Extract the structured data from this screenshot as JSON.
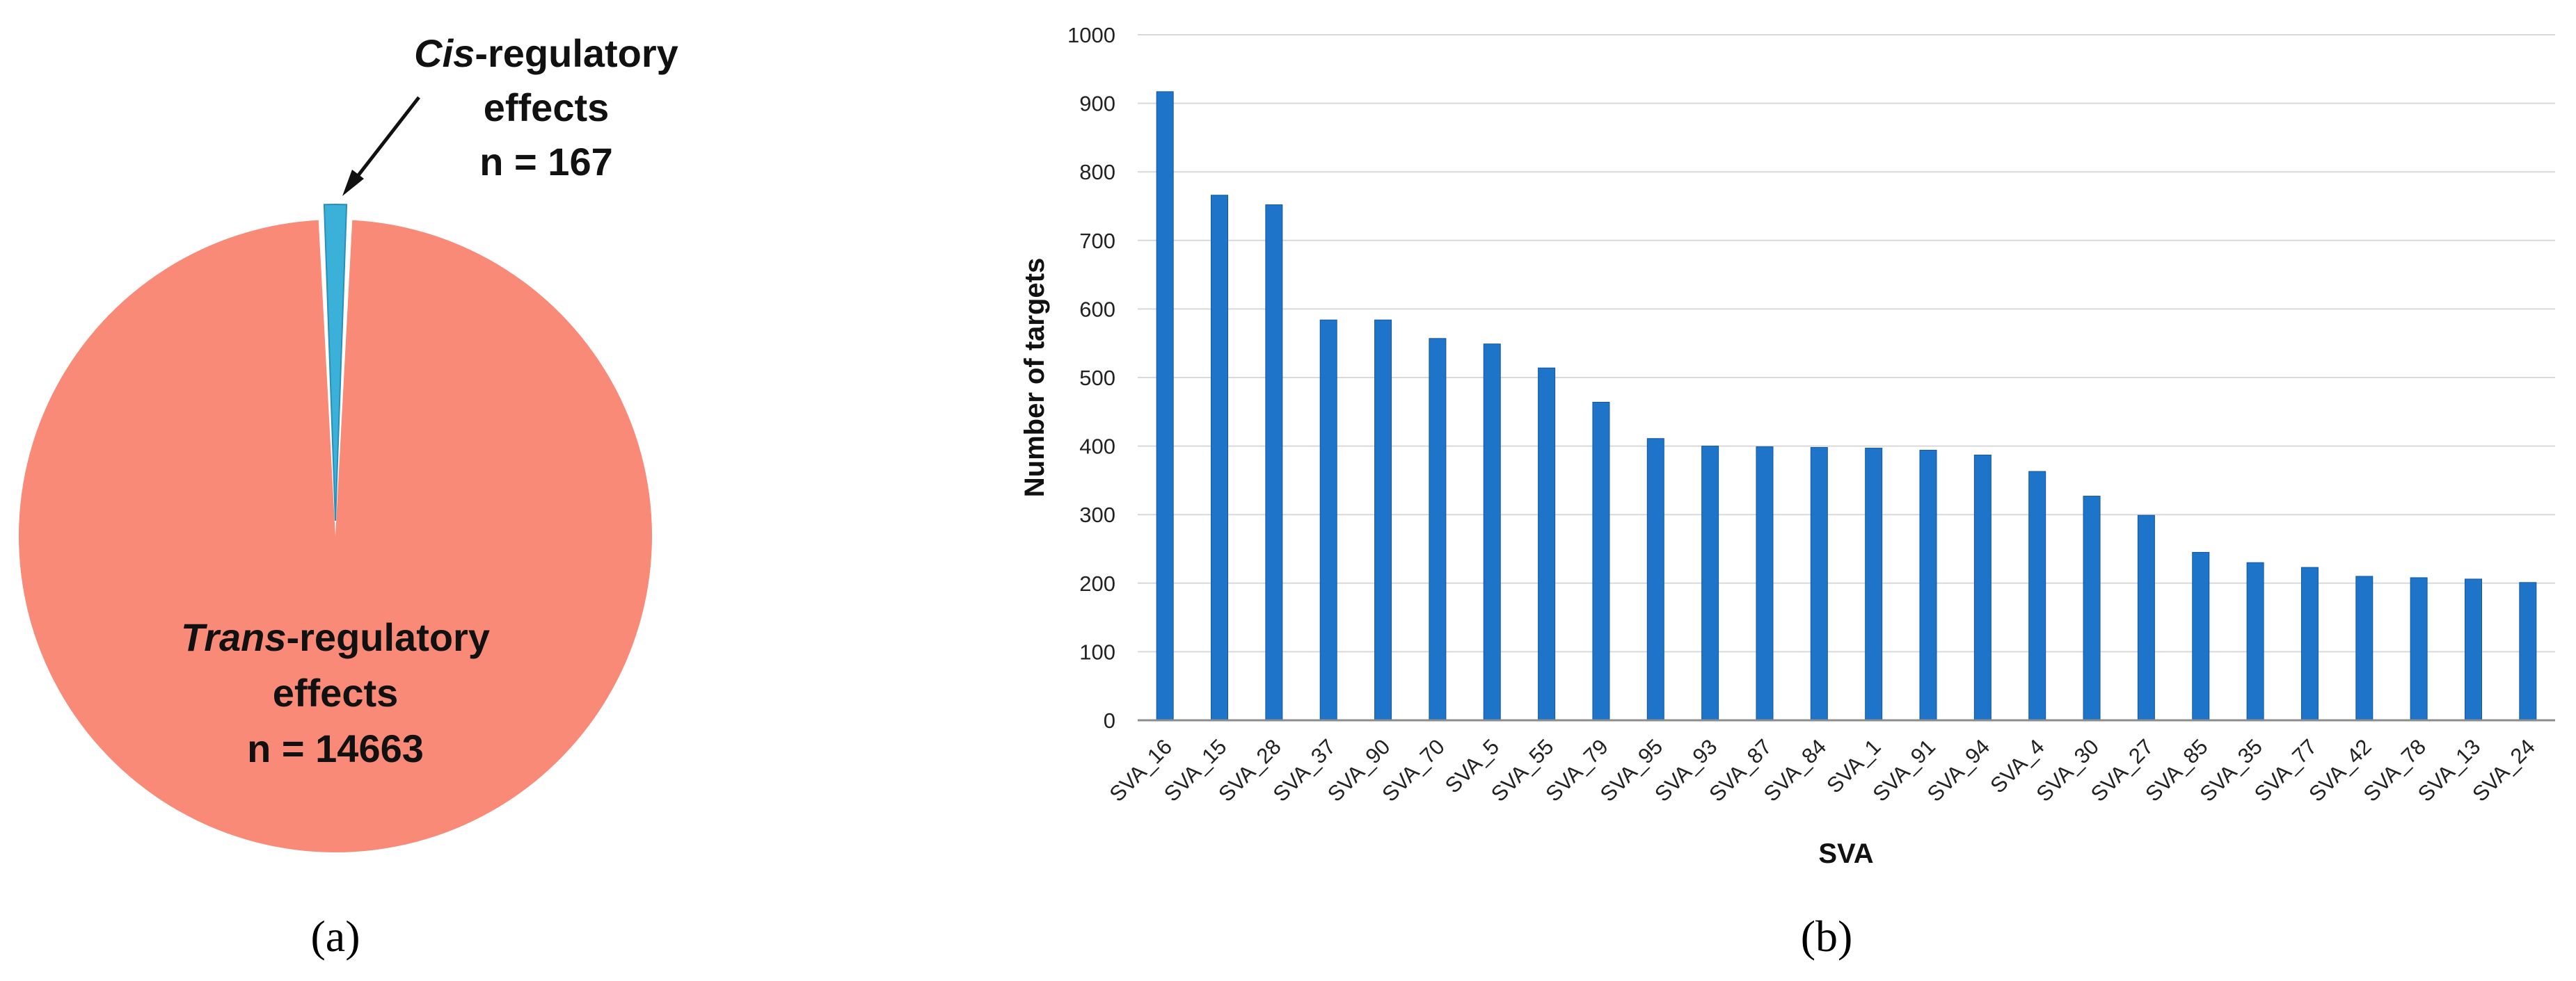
{
  "figure": {
    "panel_a_label": "(a)",
    "panel_b_label": "(b)"
  },
  "colors": {
    "trans": "#FA8A78",
    "cis": "#3BB0D8",
    "bar": "#1E74C8",
    "bar_edge": "#1457A0",
    "axis": "#8c8c8c",
    "grid": "#d9d9d9"
  },
  "chart_data": [
    {
      "type": "pie",
      "slices": [
        {
          "name_italic": "Trans",
          "name_rest": "-regulatory",
          "line2": "effects",
          "count_label": "n = 14663",
          "value": 14663,
          "color": "#FA8A78"
        },
        {
          "name_italic": "Cis",
          "name_rest": "-regulatory",
          "line2": "effects",
          "count_label": "n = 167",
          "value": 167,
          "color": "#3BB0D8"
        }
      ]
    },
    {
      "type": "bar",
      "xlabel": "SVA",
      "ylabel": "Number of targets",
      "ylim": [
        0,
        1000
      ],
      "yticks": [
        0,
        100,
        200,
        300,
        400,
        500,
        600,
        700,
        800,
        900,
        1000
      ],
      "grid": true,
      "categories": [
        "SVA_16",
        "SVA_15",
        "SVA_28",
        "SVA_37",
        "SVA_90",
        "SVA_70",
        "SVA_5",
        "SVA_55",
        "SVA_79",
        "SVA_95",
        "SVA_93",
        "SVA_87",
        "SVA_84",
        "SVA_1",
        "SVA_91",
        "SVA_94",
        "SVA_4",
        "SVA_30",
        "SVA_27",
        "SVA_85",
        "SVA_35",
        "SVA_77",
        "SVA_42",
        "SVA_78",
        "SVA_13",
        "SVA_24"
      ],
      "values": [
        917,
        766,
        752,
        584,
        584,
        557,
        549,
        514,
        464,
        411,
        400,
        399,
        398,
        397,
        394,
        387,
        363,
        327,
        299,
        245,
        230,
        223,
        210,
        208,
        206,
        201
      ]
    }
  ]
}
